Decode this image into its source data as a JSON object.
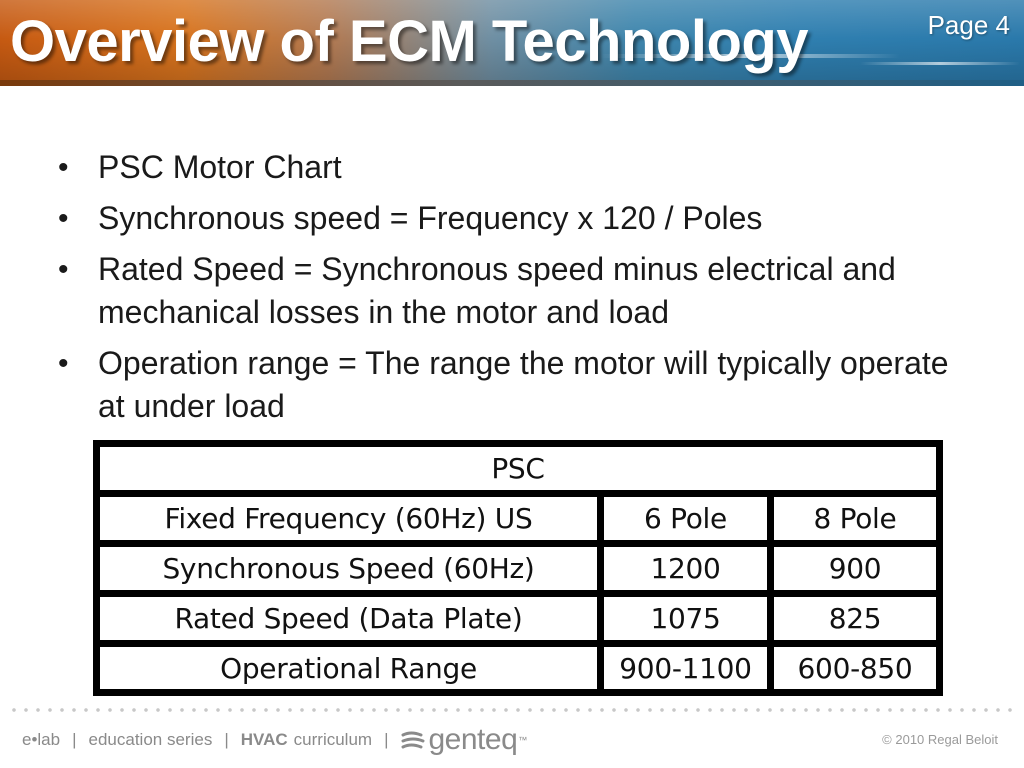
{
  "slide": {
    "title": "Overview of ECM Technology",
    "page_label": "Page 4"
  },
  "bullets": [
    {
      "text": "PSC Motor Chart"
    },
    {
      "text": "Synchronous speed = Frequency x 120 / Poles"
    },
    {
      "text": "Rated Speed = Synchronous speed minus electrical and mechanical losses in the motor and load"
    },
    {
      "text": "Operation range = The range the motor will typically operate at under load"
    }
  ],
  "bullet_glyph": "•",
  "table": {
    "title": "PSC",
    "header": [
      "Fixed Frequency (60Hz) US",
      "6 Pole",
      "8 Pole"
    ],
    "rows": [
      [
        "Synchronous Speed (60Hz)",
        "1200",
        "900"
      ],
      [
        "Rated Speed (Data Plate)",
        "1075",
        "825"
      ],
      [
        "Operational Range",
        "900-1100",
        "600-850"
      ]
    ]
  },
  "footer": {
    "elab": "e•lab",
    "sep": "|",
    "education": "education series",
    "hvac_bold": "HVAC",
    "curriculum": "curriculum",
    "brand": "genteq",
    "tm": "™",
    "copyright": "© 2010 Regal Beloit"
  },
  "colors": {
    "header_orange": "#c65a12",
    "header_blue": "#2a79ab",
    "text": "#1a1a1a",
    "footer_gray": "#8a8a8a"
  }
}
